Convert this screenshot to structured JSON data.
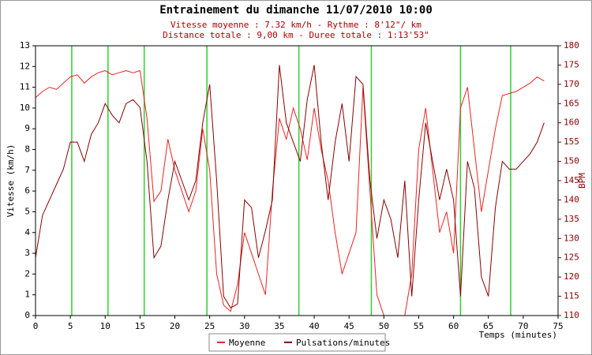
{
  "chart_data": {
    "type": "line",
    "title": "Entrainement du dimanche 11/07/2010 10:00",
    "subtitle": [
      "Vitesse moyenne : 7.32 km/h - Rythme : 8'12\"/ km",
      "Distance totale : 9,00 km - Duree totale : 1:13'53\""
    ],
    "x_label": "Temps (minutes)",
    "y_label": "Vitesse (km/h)",
    "y2_label": "BPM",
    "x": [
      0,
      1,
      2,
      3,
      4,
      5,
      6,
      7,
      8,
      9,
      10,
      11,
      12,
      13,
      14,
      15,
      16,
      17,
      18,
      19,
      20,
      21,
      22,
      23,
      24,
      25,
      26,
      27,
      28,
      29,
      30,
      31,
      32,
      33,
      34,
      35,
      36,
      37,
      38,
      39,
      40,
      41,
      42,
      43,
      44,
      45,
      46,
      47,
      48,
      49,
      50,
      51,
      52,
      53,
      54,
      55,
      56,
      57,
      58,
      59,
      60,
      61,
      62,
      63,
      64,
      65,
      66,
      67,
      68,
      69,
      70,
      71,
      72,
      73
    ],
    "series": [
      {
        "name": "Moyenne",
        "color": "#ee2222",
        "values": [
          10.5,
          10.8,
          11,
          10.9,
          11.2,
          11.5,
          11.6,
          11.2,
          11.5,
          11.7,
          11.8,
          11.6,
          11.7,
          11.8,
          11.7,
          11.8,
          9.5,
          5.5,
          6,
          8.5,
          7,
          6,
          5,
          6,
          9,
          7,
          2,
          0.5,
          0.2,
          1.5,
          4,
          3,
          2,
          1,
          6,
          9.5,
          8.5,
          10,
          9,
          7.5,
          10,
          8,
          6.5,
          4,
          2,
          3,
          4,
          11,
          6,
          1,
          0,
          0,
          0,
          0,
          2,
          8,
          10,
          7,
          4,
          5,
          3,
          10,
          11,
          8,
          5,
          7,
          9,
          10.6,
          10.7,
          10.8,
          11,
          11.2,
          11.5,
          11.3
        ]
      },
      {
        "name": "Pulsations/minutes",
        "color": "#880000",
        "axis": "y2",
        "values": [
          125,
          136,
          140,
          144,
          148,
          155,
          155,
          150,
          157,
          160,
          165,
          162,
          160,
          165,
          166,
          164,
          150,
          125,
          128,
          140,
          150,
          145,
          140,
          145,
          160,
          170,
          145,
          115,
          112,
          113,
          140,
          138,
          125,
          132,
          140,
          175,
          160,
          155,
          150,
          166,
          175,
          155,
          140,
          155,
          165,
          150,
          172,
          170,
          145,
          130,
          140,
          135,
          125,
          145,
          115,
          140,
          160,
          150,
          140,
          148,
          140,
          115,
          150,
          143,
          120,
          115,
          138,
          150,
          148,
          148,
          150,
          152,
          155,
          160
        ]
      }
    ],
    "vlines": [
      5.2,
      10.4,
      15.6,
      24.6,
      37.8,
      48.2,
      61,
      68.2
    ],
    "vline_color": "#33cc33",
    "xlim": [
      0,
      75
    ],
    "xticks": [
      0,
      5,
      10,
      15,
      20,
      25,
      30,
      35,
      40,
      45,
      50,
      55,
      60,
      65,
      70,
      75
    ],
    "ylim": [
      0,
      13
    ],
    "yticks": [
      0,
      1,
      2,
      3,
      4,
      5,
      6,
      7,
      8,
      9,
      10,
      11,
      12,
      13
    ],
    "y2lim": [
      110,
      180
    ],
    "y2ticks": [
      110,
      115,
      120,
      125,
      130,
      135,
      140,
      145,
      150,
      155,
      160,
      165,
      170,
      175,
      180
    ]
  }
}
